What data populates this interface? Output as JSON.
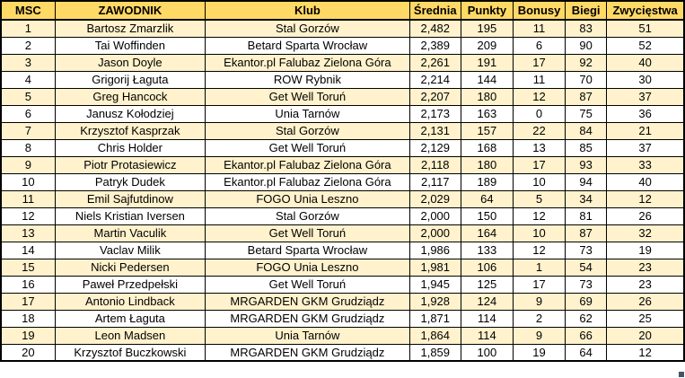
{
  "colors": {
    "header_bg": "#FFD966",
    "band_bg": "#FFF2CC",
    "row_bg": "#FFFFFF",
    "border": "#000000",
    "text": "#000000",
    "handle": "#44546A"
  },
  "table": {
    "columns": [
      "MSC",
      "ZAWODNIK",
      "Klub",
      "Średnia",
      "Punkty",
      "Bonusy",
      "Biegi",
      "Zwycięstwa"
    ],
    "column_keys": [
      "msc",
      "zawodnik",
      "klub",
      "srednia",
      "punkty",
      "bonusy",
      "biegi",
      "zwyciestwa"
    ],
    "rows": [
      [
        "1",
        "Bartosz Zmarzlik",
        "Stal Gorzów",
        "2,482",
        "195",
        "11",
        "83",
        "51"
      ],
      [
        "2",
        "Tai Woffinden",
        "Betard Sparta Wrocław",
        "2,389",
        "209",
        "6",
        "90",
        "52"
      ],
      [
        "3",
        "Jason Doyle",
        "Ekantor.pl Falubaz Zielona Góra",
        "2,261",
        "191",
        "17",
        "92",
        "40"
      ],
      [
        "4",
        "Grigorij Łaguta",
        "ROW Rybnik",
        "2,214",
        "144",
        "11",
        "70",
        "30"
      ],
      [
        "5",
        "Greg Hancock",
        "Get Well Toruń",
        "2,207",
        "180",
        "12",
        "87",
        "37"
      ],
      [
        "6",
        "Janusz Kołodziej",
        "Unia Tarnów",
        "2,173",
        "163",
        "0",
        "75",
        "36"
      ],
      [
        "7",
        "Krzysztof Kasprzak",
        "Stal Gorzów",
        "2,131",
        "157",
        "22",
        "84",
        "21"
      ],
      [
        "8",
        "Chris Holder",
        "Get Well Toruń",
        "2,129",
        "168",
        "13",
        "85",
        "37"
      ],
      [
        "9",
        "Piotr Protasiewicz",
        "Ekantor.pl Falubaz Zielona Góra",
        "2,118",
        "180",
        "17",
        "93",
        "33"
      ],
      [
        "10",
        "Patryk Dudek",
        "Ekantor.pl Falubaz Zielona Góra",
        "2,117",
        "189",
        "10",
        "94",
        "40"
      ],
      [
        "11",
        "Emil Sajfutdinow",
        "FOGO Unia Leszno",
        "2,029",
        "64",
        "5",
        "34",
        "12"
      ],
      [
        "12",
        "Niels Kristian Iversen",
        "Stal Gorzów",
        "2,000",
        "150",
        "12",
        "81",
        "26"
      ],
      [
        "13",
        "Martin Vaculik",
        "Get Well Toruń",
        "2,000",
        "164",
        "10",
        "87",
        "32"
      ],
      [
        "14",
        "Vaclav Milik",
        "Betard Sparta Wrocław",
        "1,986",
        "133",
        "12",
        "73",
        "19"
      ],
      [
        "15",
        "Nicki Pedersen",
        "FOGO Unia Leszno",
        "1,981",
        "106",
        "1",
        "54",
        "23"
      ],
      [
        "16",
        "Paweł Przedpełski",
        "Get Well Toruń",
        "1,945",
        "125",
        "17",
        "73",
        "23"
      ],
      [
        "17",
        "Antonio Lindback",
        "MRGARDEN GKM Grudziądz",
        "1,928",
        "124",
        "9",
        "69",
        "26"
      ],
      [
        "18",
        "Artem Łaguta",
        "MRGARDEN GKM Grudziądz",
        "1,871",
        "114",
        "2",
        "62",
        "25"
      ],
      [
        "19",
        "Leon Madsen",
        "Unia Tarnów",
        "1,864",
        "114",
        "9",
        "66",
        "20"
      ],
      [
        "20",
        "Krzysztof Buczkowski",
        "MRGARDEN GKM Grudziądz",
        "1,859",
        "100",
        "19",
        "64",
        "12"
      ]
    ]
  }
}
